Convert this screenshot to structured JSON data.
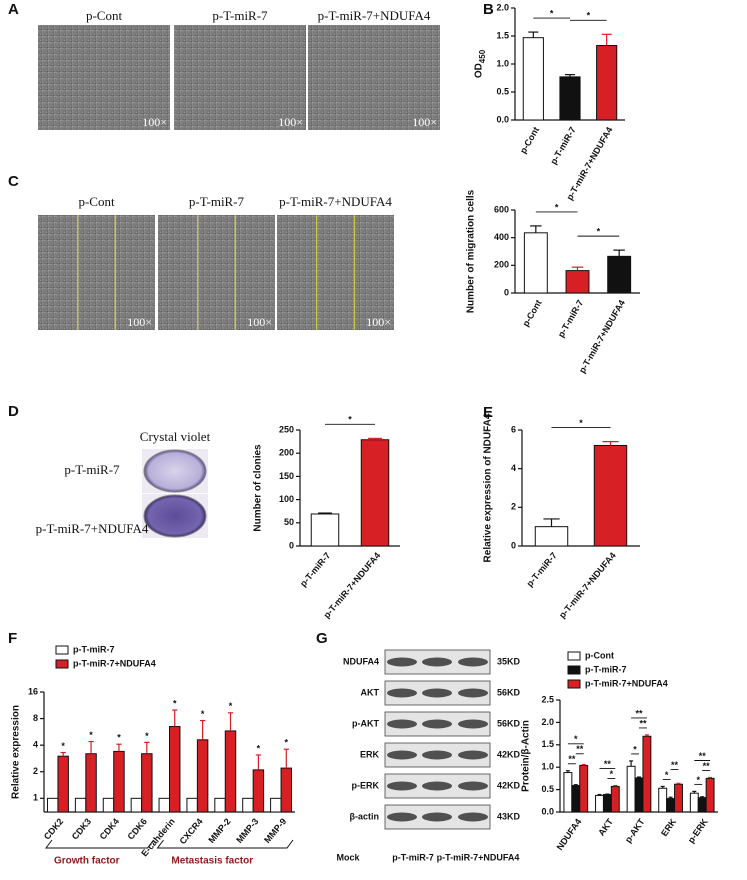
{
  "image_panels": [
    {
      "panel": "A",
      "captions": [
        "p-Cont",
        "p-T-miR-7",
        "p-T-miR-7+NDUFA4"
      ],
      "scale": [
        "100×",
        "100×",
        "100×"
      ]
    },
    {
      "panel": "C",
      "captions": [
        "p-Cont",
        "p-T-miR-7",
        "p-T-miR-7+NDUFA4"
      ],
      "scale": [
        "100×",
        "100×",
        "100×"
      ]
    },
    {
      "panel": "D",
      "title": "Crystal violet",
      "captions": [
        "p-T-miR-7",
        "p-T-miR-7+NDUFA4"
      ]
    }
  ],
  "blot": {
    "panel": "G",
    "rows": [
      {
        "protein": "NDUFA4",
        "size": "35KD"
      },
      {
        "protein": "AKT",
        "size": "56KD"
      },
      {
        "protein": "p-AKT",
        "size": "56KD"
      },
      {
        "protein": "ERK",
        "size": "42KD"
      },
      {
        "protein": "p-ERK",
        "size": "42KD"
      },
      {
        "protein": "β-actin",
        "size": "43KD"
      }
    ],
    "lanes": [
      "Mock",
      "p-T-miR-7",
      "p-T-miR-7+NDUFA4"
    ]
  },
  "chart_data": [
    {
      "type": "bar",
      "panel": "B",
      "ylabel": "OD",
      "ylabel_sub": "450",
      "categories": [
        "p-Cont",
        "p-T-miR-7",
        "p-T-miR-7+NDUFA4"
      ],
      "values": [
        1.47,
        0.77,
        1.33
      ],
      "errors": [
        0.1,
        0.04,
        0.2
      ],
      "colors": [
        "#ffffff",
        "#111111",
        "#d71f26"
      ],
      "ylim": [
        0,
        2
      ],
      "yticks": [
        {
          "value": 0,
          "label": "0.0"
        },
        {
          "value": 0.5,
          "label": "0.5"
        },
        {
          "value": 1,
          "label": "1.0"
        },
        {
          "value": 1.5,
          "label": "1.5"
        },
        {
          "value": 2,
          "label": "2.0"
        }
      ],
      "sig": [
        {
          "from": 0,
          "to": 1,
          "label": "*"
        },
        {
          "from": 1,
          "to": 2,
          "label": "*"
        }
      ]
    },
    {
      "type": "bar",
      "ylabel": "Number of migration cells",
      "categories": [
        "p-Cont",
        "p-T-miR-7",
        "p-T-miR-7+NDUFA4"
      ],
      "values": [
        435,
        162,
        265
      ],
      "errors": [
        50,
        25,
        45
      ],
      "colors": [
        "#ffffff",
        "#d71f26",
        "#111111"
      ],
      "ylim": [
        0,
        600
      ],
      "yticks": [
        0,
        200,
        400,
        600
      ],
      "sig": [
        {
          "from": 0,
          "to": 1,
          "label": "*"
        },
        {
          "from": 1,
          "to": 2,
          "label": "*"
        }
      ]
    },
    {
      "type": "bar",
      "ylabel": "Number of clonies",
      "categories": [
        "p-T-miR-7",
        "p-T-miR-7+NDUFA4"
      ],
      "values": [
        69,
        229
      ],
      "errors": [
        2,
        3
      ],
      "colors": [
        "#ffffff",
        "#d71f26"
      ],
      "ylim": [
        0,
        250
      ],
      "yticks": [
        0,
        50,
        100,
        150,
        200,
        250
      ],
      "sig": [
        {
          "from": 0,
          "to": 1,
          "label": "*"
        }
      ]
    },
    {
      "type": "bar",
      "panel": "E",
      "ylabel": "Relative expression of NDUFA4",
      "categories": [
        "p-T-miR-7",
        "p-T-miR-7+NDUFA4"
      ],
      "values": [
        1.0,
        5.2
      ],
      "errors": [
        0.4,
        0.2
      ],
      "colors": [
        "#ffffff",
        "#d71f26"
      ],
      "ylim": [
        0,
        6
      ],
      "yticks": [
        0,
        2,
        4,
        6
      ],
      "sig": [
        {
          "from": 0,
          "to": 1,
          "label": "*"
        }
      ]
    },
    {
      "type": "bar",
      "panel": "F",
      "ylabel": "Relative expression",
      "yscale": "log",
      "categories": [
        "CDK2",
        "CDK3",
        "CDK4",
        "CDK6",
        "E-cahderin",
        "CXCR4",
        "MMP-2",
        "MMP-3",
        "MMP-9"
      ],
      "series": [
        {
          "name": "p-T-miR-7",
          "color": "#ffffff",
          "values": [
            1,
            1,
            1,
            1,
            1,
            1,
            1,
            1,
            1
          ]
        },
        {
          "name": "p-T-miR-7+NDUFA4",
          "color": "#d71f26",
          "values": [
            3.0,
            3.2,
            3.4,
            3.2,
            6.5,
            4.6,
            5.8,
            2.1,
            2.2
          ],
          "errors": [
            0.3,
            1.2,
            0.7,
            1.1,
            3.5,
            3.0,
            3.5,
            1.0,
            1.4
          ]
        }
      ],
      "annotations": [
        "*",
        "*",
        "*",
        "*",
        "*",
        "*",
        "*",
        "*",
        "*"
      ],
      "groups": [
        {
          "label": "Growth factor",
          "from": 0,
          "to": 3
        },
        {
          "label": "Metastasis factor",
          "from": 4,
          "to": 8
        }
      ],
      "ylim": [
        0.7,
        16
      ],
      "yticks": [
        1,
        2,
        4,
        8,
        16
      ]
    },
    {
      "type": "bar",
      "ylabel": "Protein/β-Actin",
      "categories": [
        "NDUFA4",
        "AKT",
        "p-AKT",
        "ERK",
        "p-ERK"
      ],
      "series": [
        {
          "name": "p-Cont",
          "color": "#ffffff",
          "values": [
            0.88,
            0.37,
            1.02,
            0.53,
            0.42
          ],
          "errors": [
            0.04,
            0.02,
            0.12,
            0.04,
            0.04
          ]
        },
        {
          "name": "p-T-miR-7",
          "color": "#111111",
          "values": [
            0.59,
            0.39,
            0.76,
            0.3,
            0.32
          ],
          "errors": [
            0.02,
            0.01,
            0.02,
            0.03,
            0.02
          ]
        },
        {
          "name": "p-T-miR-7+NDUFA4",
          "color": "#d71f26",
          "values": [
            1.04,
            0.57,
            1.69,
            0.62,
            0.75
          ],
          "errors": [
            0.02,
            0.02,
            0.03,
            0.02,
            0.02
          ]
        }
      ],
      "ylim": [
        0,
        2.5
      ],
      "yticks": [
        {
          "value": 0,
          "label": "0.0"
        },
        {
          "value": 0.5,
          "label": "0.5"
        },
        {
          "value": 1,
          "label": "1.0"
        },
        {
          "value": 1.5,
          "label": "1.5"
        },
        {
          "value": 2,
          "label": "2.0"
        },
        {
          "value": 2.5,
          "label": "2.5"
        }
      ],
      "sig": [
        {
          "category": 0,
          "from": 0,
          "to": 1,
          "label": "**"
        },
        {
          "category": 0,
          "from": 1,
          "to": 2,
          "label": "**"
        },
        {
          "category": 0,
          "from": 0,
          "to": 2,
          "label": "*"
        },
        {
          "category": 1,
          "from": 1,
          "to": 2,
          "label": "*"
        },
        {
          "category": 1,
          "from": 0,
          "to": 2,
          "label": "**"
        },
        {
          "category": 2,
          "from": 0,
          "to": 1,
          "label": "*"
        },
        {
          "category": 2,
          "from": 1,
          "to": 2,
          "label": "**"
        },
        {
          "category": 2,
          "from": 0,
          "to": 2,
          "label": "**"
        },
        {
          "category": 3,
          "from": 0,
          "to": 1,
          "label": "*"
        },
        {
          "category": 3,
          "from": 1,
          "to": 2,
          "label": "**"
        },
        {
          "category": 4,
          "from": 0,
          "to": 1,
          "label": "*"
        },
        {
          "category": 4,
          "from": 1,
          "to": 2,
          "label": "**"
        },
        {
          "category": 4,
          "from": 0,
          "to": 2,
          "label": "**"
        }
      ]
    }
  ]
}
